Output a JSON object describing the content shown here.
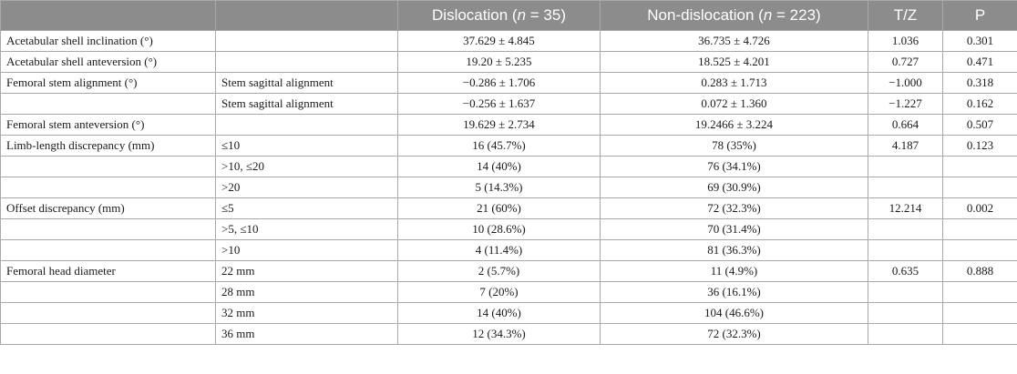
{
  "table": {
    "headers": {
      "col1": "",
      "col2": "",
      "dislocation": {
        "label": "Dislocation (",
        "n_symbol": "n",
        "n_value": " = 35)"
      },
      "non_dislocation": {
        "label": "Non-dislocation (",
        "n_symbol": "n",
        "n_value": " = 223)"
      },
      "tz": "T/Z",
      "p": "P"
    },
    "rows": [
      {
        "label": "Acetabular shell inclination (°)",
        "sub": "",
        "dislocation": "37.629 ± 4.845",
        "non_dislocation": "36.735 ± 4.726",
        "tz": "1.036",
        "p": "0.301"
      },
      {
        "label": "Acetabular shell anteversion (°)",
        "sub": "",
        "dislocation": "19.20 ± 5.235",
        "non_dislocation": "18.525 ± 4.201",
        "tz": "0.727",
        "p": "0.471"
      },
      {
        "label": "Femoral stem alignment (°)",
        "sub": "Stem sagittal alignment",
        "dislocation": "−0.286 ± 1.706",
        "non_dislocation": "0.283 ± 1.713",
        "tz": "−1.000",
        "p": "0.318"
      },
      {
        "label": "",
        "sub": "Stem sagittal alignment",
        "dislocation": "−0.256 ± 1.637",
        "non_dislocation": "0.072 ± 1.360",
        "tz": "−1.227",
        "p": "0.162"
      },
      {
        "label": "Femoral stem anteversion (°)",
        "sub": "",
        "dislocation": "19.629 ± 2.734",
        "non_dislocation": "19.2466 ± 3.224",
        "tz": "0.664",
        "p": "0.507"
      },
      {
        "label": "Limb-length discrepancy (mm)",
        "sub": "≤10",
        "dislocation": "16 (45.7%)",
        "non_dislocation": "78 (35%)",
        "tz": "4.187",
        "p": "0.123"
      },
      {
        "label": "",
        "sub": ">10, ≤20",
        "dislocation": "14 (40%)",
        "non_dislocation": "76 (34.1%)",
        "tz": "",
        "p": ""
      },
      {
        "label": "",
        "sub": ">20",
        "dislocation": "5 (14.3%)",
        "non_dislocation": "69 (30.9%)",
        "tz": "",
        "p": ""
      },
      {
        "label": "Offset discrepancy (mm)",
        "sub": "≤5",
        "dislocation": "21 (60%)",
        "non_dislocation": "72 (32.3%)",
        "tz": "12.214",
        "p": "0.002"
      },
      {
        "label": "",
        "sub": ">5, ≤10",
        "dislocation": "10 (28.6%)",
        "non_dislocation": "70 (31.4%)",
        "tz": "",
        "p": ""
      },
      {
        "label": "",
        "sub": ">10",
        "dislocation": "4 (11.4%)",
        "non_dislocation": "81 (36.3%)",
        "tz": "",
        "p": ""
      },
      {
        "label": "Femoral head diameter",
        "sub": "22 mm",
        "dislocation": "2 (5.7%)",
        "non_dislocation": "11 (4.9%)",
        "tz": "0.635",
        "p": "0.888"
      },
      {
        "label": "",
        "sub": "28 mm",
        "dislocation": "7 (20%)",
        "non_dislocation": "36 (16.1%)",
        "tz": "",
        "p": ""
      },
      {
        "label": "",
        "sub": "32 mm",
        "dislocation": "14 (40%)",
        "non_dislocation": "104 (46.6%)",
        "tz": "",
        "p": ""
      },
      {
        "label": "",
        "sub": "36 mm",
        "dislocation": "12 (34.3%)",
        "non_dislocation": "72 (32.3%)",
        "tz": "",
        "p": ""
      }
    ]
  }
}
